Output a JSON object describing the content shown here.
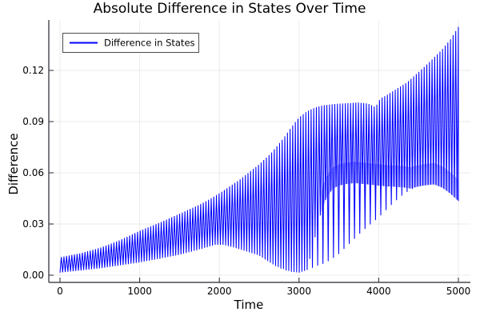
{
  "title": "Absolute Difference in States Over Time",
  "legend": {
    "label": "Difference in States"
  },
  "axes": {
    "x": {
      "label": "Time",
      "tick_labels": [
        "0",
        "1000",
        "2000",
        "3000",
        "4000",
        "5000"
      ],
      "tick_values": [
        0,
        1000,
        2000,
        3000,
        4000,
        5000
      ]
    },
    "y": {
      "label": "Difference",
      "tick_labels": [
        "0.00",
        "0.03",
        "0.06",
        "0.09",
        "0.12"
      ],
      "tick_values": [
        0,
        0.03,
        0.06,
        0.09,
        0.12
      ]
    }
  },
  "colors": {
    "series": "#0000FF",
    "grid": "rgba(0,0,0,0.08)",
    "spine": "#26262d",
    "text": "#000000",
    "legend_border": "#4d4d4d",
    "background": "#FFFFFF"
  },
  "chart_data": {
    "type": "line",
    "title": "Absolute Difference in States Over Time",
    "xlabel": "Time",
    "ylabel": "Difference",
    "xlim": [
      0,
      5000
    ],
    "ylim": [
      0,
      0.145
    ],
    "grid": true,
    "legend_position": "top-left",
    "series": [
      {
        "name": "Difference in States",
        "color": "#0000FF",
        "style": "rapid-oscillation-band",
        "oscillation_period": 33,
        "upper_envelope": [
          [
            0,
            0.0105
          ],
          [
            250,
            0.0128
          ],
          [
            500,
            0.016
          ],
          [
            750,
            0.0205
          ],
          [
            1000,
            0.026
          ],
          [
            1250,
            0.0308
          ],
          [
            1500,
            0.036
          ],
          [
            1750,
            0.0413
          ],
          [
            1857,
            0.044
          ],
          [
            2000,
            0.048
          ],
          [
            2250,
            0.0558
          ],
          [
            2500,
            0.065
          ],
          [
            2650,
            0.0715
          ],
          [
            2800,
            0.08
          ],
          [
            2900,
            0.0865
          ],
          [
            3000,
            0.0925
          ],
          [
            3100,
            0.096
          ],
          [
            3200,
            0.0982
          ],
          [
            3300,
            0.0995
          ],
          [
            3450,
            0.1003
          ],
          [
            3600,
            0.1008
          ],
          [
            3750,
            0.1012
          ],
          [
            3870,
            0.1005
          ],
          [
            3960,
            0.0985
          ],
          [
            4020,
            0.1035
          ],
          [
            4100,
            0.1055
          ],
          [
            4200,
            0.1085
          ],
          [
            4350,
            0.1128
          ],
          [
            4500,
            0.119
          ],
          [
            4650,
            0.1255
          ],
          [
            4800,
            0.1325
          ],
          [
            4900,
            0.1382
          ],
          [
            5000,
            0.1455
          ]
        ],
        "lower_envelope": [
          [
            0,
            0.0015
          ],
          [
            250,
            0.0027
          ],
          [
            500,
            0.004
          ],
          [
            750,
            0.0057
          ],
          [
            1000,
            0.0075
          ],
          [
            1250,
            0.0096
          ],
          [
            1500,
            0.012
          ],
          [
            1750,
            0.015
          ],
          [
            1950,
            0.0178
          ],
          [
            2050,
            0.0178
          ],
          [
            2200,
            0.016
          ],
          [
            2350,
            0.0138
          ],
          [
            2500,
            0.0115
          ],
          [
            2600,
            0.0085
          ],
          [
            2700,
            0.0055
          ],
          [
            2800,
            0.0032
          ],
          [
            2900,
            0.002
          ],
          [
            3000,
            0.0015
          ],
          [
            3100,
            0.003
          ],
          [
            3200,
            0.005
          ],
          [
            3300,
            0.0066
          ],
          [
            3400,
            0.009
          ],
          [
            3500,
            0.0125
          ],
          [
            3600,
            0.017
          ],
          [
            3700,
            0.0215
          ],
          [
            3800,
            0.026
          ],
          [
            3900,
            0.03
          ],
          [
            4000,
            0.0338
          ],
          [
            4100,
            0.0385
          ],
          [
            4200,
            0.043
          ],
          [
            4300,
            0.047
          ],
          [
            4400,
            0.0502
          ],
          [
            4500,
            0.052
          ],
          [
            4600,
            0.0528
          ],
          [
            4700,
            0.0532
          ],
          [
            4800,
            0.0512
          ],
          [
            4900,
            0.0478
          ],
          [
            5000,
            0.0435
          ]
        ],
        "inner_lower_envelope": [
          [
            0,
            0.0015
          ],
          [
            500,
            0.004
          ],
          [
            1000,
            0.0075
          ],
          [
            1500,
            0.012
          ],
          [
            1950,
            0.0178
          ],
          [
            2200,
            0.016
          ],
          [
            2500,
            0.0115
          ],
          [
            2700,
            0.0055
          ],
          [
            2900,
            0.002
          ],
          [
            3000,
            0.0015
          ],
          [
            3100,
            0.003
          ],
          [
            3180,
            0.018
          ],
          [
            3260,
            0.034
          ],
          [
            3340,
            0.045
          ],
          [
            3420,
            0.0505
          ],
          [
            3500,
            0.0525
          ],
          [
            3600,
            0.0535
          ],
          [
            3700,
            0.054
          ],
          [
            3800,
            0.0535
          ],
          [
            3900,
            0.053
          ],
          [
            4000,
            0.0525
          ],
          [
            4100,
            0.052
          ],
          [
            4200,
            0.0518
          ],
          [
            4300,
            0.0515
          ],
          [
            4400,
            0.0508
          ],
          [
            4500,
            0.052
          ],
          [
            4600,
            0.0528
          ],
          [
            4700,
            0.0532
          ],
          [
            4800,
            0.0512
          ],
          [
            4900,
            0.0478
          ],
          [
            5000,
            0.0435
          ]
        ]
      }
    ]
  }
}
